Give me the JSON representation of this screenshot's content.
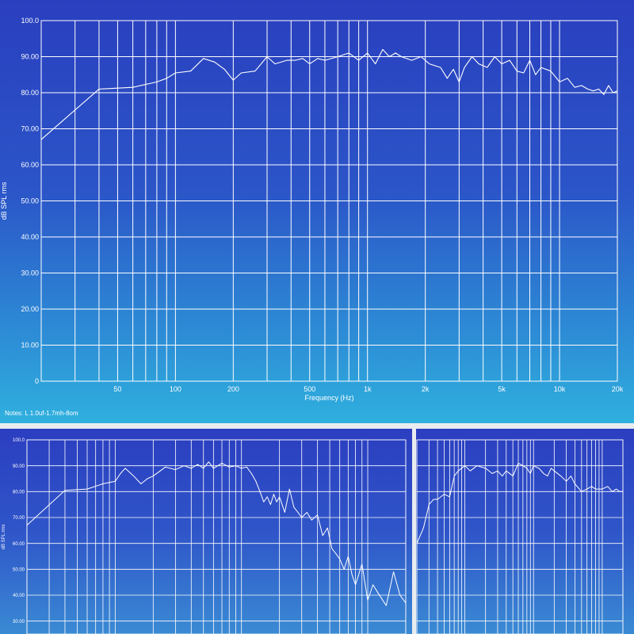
{
  "notes": "Notes: L 1.0uf-1.7mh-8om",
  "colors": {
    "grid": "#ffffff",
    "curve": "#ffffff",
    "text": "#ffffff"
  },
  "chart_data": [
    {
      "type": "line",
      "title": "",
      "xlabel": "Frequency (Hz)",
      "ylabel": "dB SPL rms",
      "xscale": "log",
      "xlim": [
        20,
        20000
      ],
      "ylim": [
        0,
        100
      ],
      "yticks": [
        "0",
        "10.00",
        "20.00",
        "30.00",
        "40.00",
        "50.00",
        "60.00",
        "70.00",
        "80.00",
        "90.00",
        "100.0"
      ],
      "xticks": [
        {
          "value": 50,
          "label": "50"
        },
        {
          "value": 100,
          "label": "100"
        },
        {
          "value": 200,
          "label": "200"
        },
        {
          "value": 500,
          "label": "500"
        },
        {
          "value": 1000,
          "label": "1k"
        },
        {
          "value": 2000,
          "label": "2k"
        },
        {
          "value": 5000,
          "label": "5k"
        },
        {
          "value": 10000,
          "label": "10k"
        },
        {
          "value": 20000,
          "label": "20k"
        }
      ],
      "grid": true,
      "series": [
        {
          "x": [
            20,
            40,
            60,
            80,
            90,
            100,
            120,
            140,
            160,
            180,
            200,
            220,
            260,
            300,
            330,
            380,
            420,
            460,
            500,
            550,
            600,
            700,
            800,
            900,
            1000,
            1100,
            1200,
            1300,
            1400,
            1500,
            1700,
            1900,
            2100,
            2400,
            2600,
            2800,
            3000,
            3200,
            3500,
            3800,
            4200,
            4600,
            5000,
            5500,
            6000,
            6500,
            7000,
            7500,
            8000,
            9000,
            10000,
            11000,
            12000,
            13000,
            14000,
            15000,
            16000,
            17000,
            18000,
            19000,
            20000
          ],
          "y": [
            67,
            81,
            81.5,
            83,
            84,
            85.5,
            86,
            89.5,
            88.5,
            86.5,
            83.5,
            85.5,
            86,
            90,
            88,
            89,
            89,
            89.5,
            88,
            89.5,
            89,
            90,
            91,
            89,
            91,
            88,
            92,
            90,
            91,
            90,
            89,
            90,
            88,
            87,
            84,
            86.5,
            83,
            87,
            90,
            88,
            87,
            90,
            88,
            89,
            86,
            85.5,
            89,
            85,
            87,
            86,
            83,
            84,
            81.5,
            82,
            81,
            80.5,
            81,
            79.5,
            82,
            80,
            80.5
          ]
        }
      ]
    },
    {
      "type": "line",
      "title": "",
      "xlabel": "",
      "ylabel": "dB SPL rms",
      "xscale": "log",
      "xlim": [
        20,
        20000
      ],
      "ylim": [
        25,
        100
      ],
      "yticks": [
        "30.00",
        "40.00",
        "50.00",
        "60.00",
        "70.00",
        "80.00",
        "90.00",
        "100.0"
      ],
      "grid": true,
      "series": [
        {
          "x": [
            20,
            40,
            60,
            80,
            100,
            110,
            120,
            140,
            160,
            180,
            200,
            250,
            300,
            350,
            400,
            450,
            500,
            550,
            600,
            650,
            700,
            800,
            900,
            1000,
            1100,
            1200,
            1300,
            1400,
            1500,
            1600,
            1700,
            1800,
            1900,
            2000,
            2200,
            2400,
            2600,
            2800,
            3000,
            3300,
            3600,
            4000,
            4400,
            4800,
            5200,
            5600,
            6000,
            6500,
            7000,
            7500,
            8000,
            9000,
            10000,
            11000,
            12000,
            14000,
            16000,
            18000,
            20000
          ],
          "y": [
            67,
            80.5,
            81,
            83,
            84,
            87,
            89,
            86,
            83,
            85,
            86,
            89.5,
            88.5,
            90,
            89,
            90.5,
            89,
            91.5,
            89,
            90,
            91,
            89.5,
            90,
            89,
            89.5,
            87,
            84,
            80,
            76,
            78,
            75,
            79,
            76,
            78,
            72,
            81,
            74,
            72,
            70,
            72,
            69,
            71,
            63,
            66,
            58,
            56,
            54,
            50,
            55,
            48,
            44,
            52,
            38,
            44,
            41,
            36,
            49,
            40,
            37
          ]
        }
      ]
    },
    {
      "type": "line",
      "title": "",
      "xlabel": "",
      "ylabel": "",
      "xscale": "log",
      "xlim": [
        20,
        20000
      ],
      "ylim": [
        25,
        100
      ],
      "grid": true,
      "series": [
        {
          "x": [
            20,
            25,
            30,
            35,
            40,
            50,
            60,
            70,
            80,
            100,
            120,
            150,
            200,
            250,
            300,
            350,
            400,
            500,
            600,
            700,
            800,
            900,
            1000,
            1200,
            1400,
            1600,
            1800,
            2000,
            2500,
            3000,
            3500,
            4000,
            5000,
            6000,
            7000,
            8000,
            9000,
            10000,
            12000,
            14000,
            16000,
            18000,
            20000
          ],
          "y": [
            60,
            66,
            75,
            77,
            77,
            79,
            78,
            86,
            88,
            90,
            88,
            90,
            89,
            87,
            88,
            86,
            88,
            86,
            91,
            90,
            89,
            87,
            90,
            89,
            87,
            86,
            89,
            88,
            86,
            84,
            86,
            83,
            80,
            81,
            82,
            81,
            81,
            81,
            82,
            80,
            81,
            80,
            80
          ]
        }
      ]
    }
  ]
}
